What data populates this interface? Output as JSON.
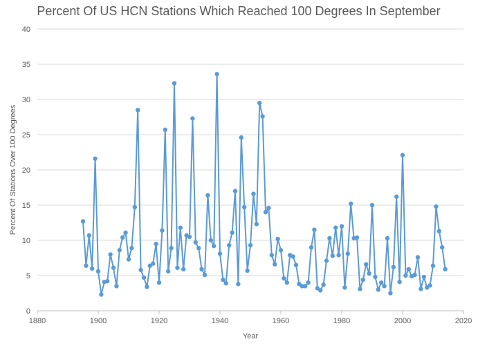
{
  "chart_data": {
    "type": "line",
    "title": "Percent Of US HCN Stations Which Reached 100 Degrees In September",
    "xlabel": "Year",
    "ylabel": "Percent Of Stations Over 100 Degrees",
    "xlim": [
      1880,
      2020
    ],
    "ylim": [
      0,
      40
    ],
    "xticks": [
      1880,
      1900,
      1920,
      1940,
      1960,
      1980,
      2000,
      2020
    ],
    "yticks": [
      0,
      5,
      10,
      15,
      20,
      25,
      30,
      35,
      40
    ],
    "grid": "horizontal",
    "legend": "none",
    "series": [
      {
        "color": "#5b9bd5",
        "x": [
          1895,
          1896,
          1897,
          1898,
          1899,
          1900,
          1901,
          1902,
          1903,
          1904,
          1905,
          1906,
          1907,
          1908,
          1909,
          1910,
          1911,
          1912,
          1913,
          1914,
          1915,
          1916,
          1917,
          1918,
          1919,
          1920,
          1921,
          1922,
          1923,
          1924,
          1925,
          1926,
          1927,
          1928,
          1929,
          1930,
          1931,
          1932,
          1933,
          1934,
          1935,
          1936,
          1937,
          1938,
          1939,
          1940,
          1941,
          1942,
          1943,
          1944,
          1945,
          1946,
          1947,
          1948,
          1949,
          1950,
          1951,
          1952,
          1953,
          1954,
          1955,
          1956,
          1957,
          1958,
          1959,
          1960,
          1961,
          1962,
          1963,
          1964,
          1965,
          1966,
          1967,
          1968,
          1969,
          1970,
          1971,
          1972,
          1973,
          1974,
          1975,
          1976,
          1977,
          1978,
          1979,
          1980,
          1981,
          1982,
          1983,
          1984,
          1985,
          1986,
          1987,
          1988,
          1989,
          1990,
          1991,
          1992,
          1993,
          1994,
          1995,
          1996,
          1997,
          1998,
          1999,
          2000,
          2001,
          2002,
          2003,
          2004,
          2005,
          2006,
          2007,
          2008,
          2009,
          2010,
          2011,
          2012,
          2013,
          2014
        ],
        "y": [
          12.7,
          6.4,
          10.7,
          6.0,
          21.6,
          5.6,
          2.3,
          4.1,
          4.2,
          8.0,
          6.1,
          3.5,
          8.6,
          10.4,
          11.1,
          7.3,
          8.9,
          14.7,
          28.5,
          5.8,
          4.7,
          3.4,
          6.4,
          6.7,
          9.5,
          4.0,
          11.4,
          25.7,
          5.6,
          8.9,
          32.3,
          6.1,
          11.8,
          5.9,
          10.7,
          10.5,
          27.3,
          9.7,
          8.9,
          5.9,
          5.1,
          16.4,
          10.0,
          9.2,
          33.6,
          8.1,
          4.4,
          3.9,
          9.3,
          11.1,
          17.0,
          3.8,
          24.6,
          14.7,
          5.7,
          9.3,
          16.6,
          12.3,
          29.5,
          27.6,
          14.0,
          14.6,
          7.9,
          6.6,
          10.2,
          8.6,
          4.6,
          4.0,
          7.9,
          7.7,
          6.5,
          3.8,
          3.5,
          3.5,
          4.0,
          9.0,
          11.5,
          3.2,
          2.9,
          3.7,
          7.1,
          10.3,
          7.8,
          11.8,
          7.9,
          12.0,
          3.3,
          8.1,
          15.2,
          10.3,
          10.4,
          3.1,
          4.4,
          6.6,
          5.3,
          15.0,
          4.8,
          3.0,
          4.0,
          3.5,
          10.3,
          2.5,
          6.2,
          16.2,
          4.1,
          22.1,
          5.0,
          5.9,
          4.9,
          5.1,
          7.6,
          3.1,
          4.8,
          3.3,
          3.6,
          6.4,
          14.8,
          11.3,
          9.0,
          5.9
        ]
      }
    ]
  }
}
